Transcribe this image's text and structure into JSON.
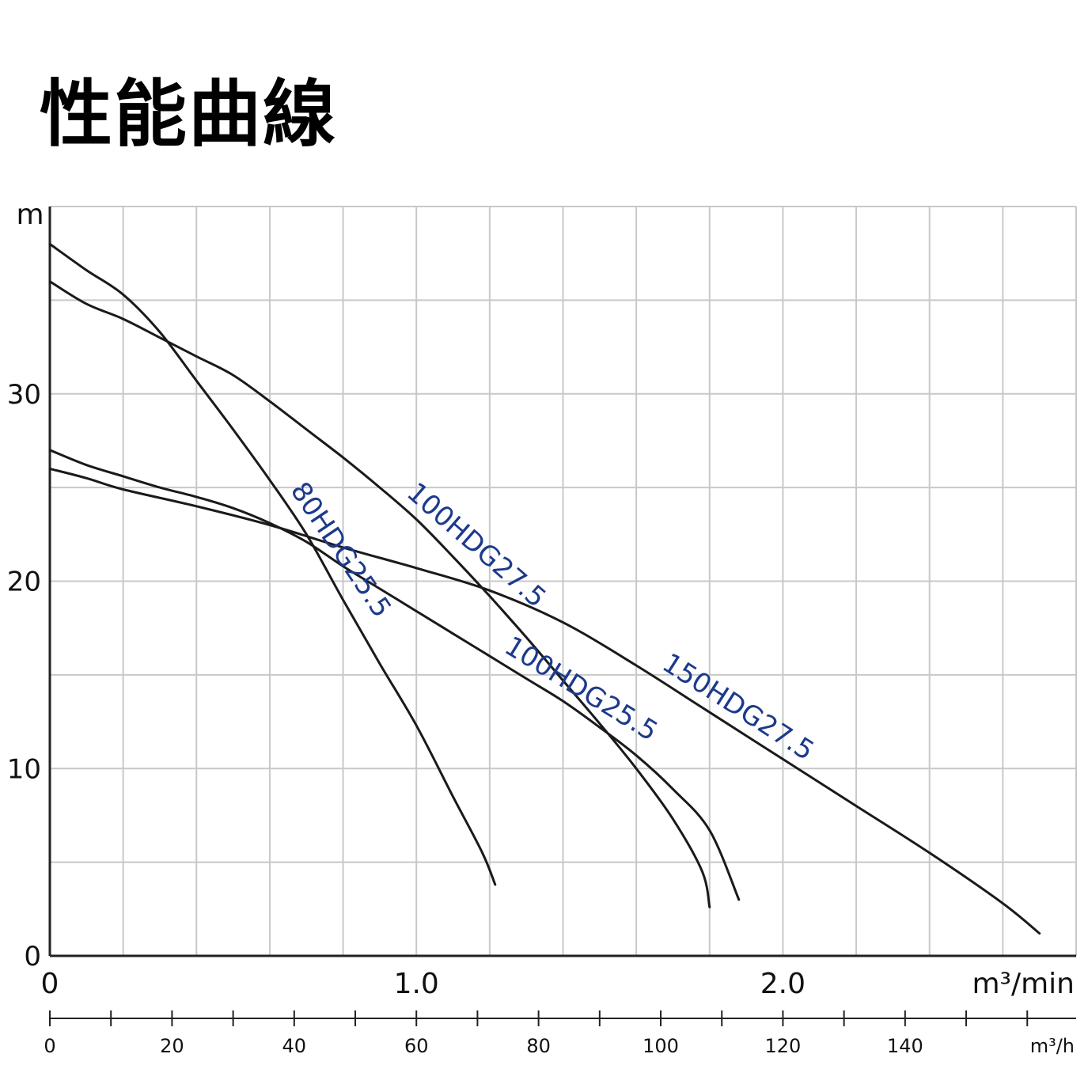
{
  "title": "性能曲線",
  "chart_data": {
    "type": "line",
    "title": "性能曲線",
    "ylabel": "m",
    "xlabel": "m³/min",
    "xlabel_secondary": "m³/h",
    "xlim": [
      0,
      2.8
    ],
    "ylim": [
      0,
      40
    ],
    "yticks": [
      0,
      10,
      20,
      30
    ],
    "xticks_major": [
      0,
      1.0,
      2.0
    ],
    "xticks_major_labels": [
      "0",
      "1.0",
      "2.0"
    ],
    "xticks_secondary": [
      0,
      20,
      40,
      60,
      80,
      100,
      120,
      140
    ],
    "xticks_secondary_labels": [
      "0",
      "20",
      "40",
      "60",
      "80",
      "100",
      "120",
      "140"
    ],
    "grid": true,
    "series": [
      {
        "name": "80HDG25.5",
        "color": "#1a1a1a",
        "label_color": "#1c3a8c",
        "points": [
          [
            0,
            38.0
          ],
          [
            0.1,
            36.6
          ],
          [
            0.2,
            35.3
          ],
          [
            0.3,
            33.3
          ],
          [
            0.4,
            30.7
          ],
          [
            0.5,
            28.1
          ],
          [
            0.6,
            25.4
          ],
          [
            0.7,
            22.5
          ],
          [
            0.8,
            19.0
          ],
          [
            0.9,
            15.6
          ],
          [
            1.0,
            12.3
          ],
          [
            1.1,
            8.5
          ],
          [
            1.18,
            5.5
          ],
          [
            1.215,
            3.8
          ]
        ]
      },
      {
        "name": "100HDG27.5",
        "color": "#1a1a1a",
        "label_color": "#1c3a8c",
        "points": [
          [
            0,
            36.0
          ],
          [
            0.1,
            34.8
          ],
          [
            0.2,
            34.0
          ],
          [
            0.3,
            33.0
          ],
          [
            0.4,
            32.0
          ],
          [
            0.5,
            31.0
          ],
          [
            0.6,
            29.6
          ],
          [
            0.7,
            28.1
          ],
          [
            0.8,
            26.6
          ],
          [
            0.9,
            25.0
          ],
          [
            1.0,
            23.3
          ],
          [
            1.1,
            21.3
          ],
          [
            1.2,
            19.2
          ],
          [
            1.3,
            17.0
          ],
          [
            1.4,
            14.7
          ],
          [
            1.5,
            12.4
          ],
          [
            1.6,
            10.0
          ],
          [
            1.7,
            7.3
          ],
          [
            1.78,
            4.5
          ],
          [
            1.8,
            2.6
          ]
        ]
      },
      {
        "name": "100HDG25.5",
        "color": "#1a1a1a",
        "label_color": "#1c3a8c",
        "points": [
          [
            0,
            27.0
          ],
          [
            0.1,
            26.2
          ],
          [
            0.2,
            25.6
          ],
          [
            0.3,
            25.0
          ],
          [
            0.4,
            24.5
          ],
          [
            0.5,
            23.9
          ],
          [
            0.6,
            23.1
          ],
          [
            0.7,
            22.1
          ],
          [
            0.8,
            20.8
          ],
          [
            0.9,
            19.6
          ],
          [
            1.0,
            18.4
          ],
          [
            1.1,
            17.2
          ],
          [
            1.2,
            16.0
          ],
          [
            1.3,
            14.8
          ],
          [
            1.4,
            13.6
          ],
          [
            1.5,
            12.2
          ],
          [
            1.6,
            10.7
          ],
          [
            1.7,
            8.9
          ],
          [
            1.8,
            6.7
          ],
          [
            1.88,
            3.0
          ]
        ]
      },
      {
        "name": "150HDG27.5",
        "color": "#1a1a1a",
        "label_color": "#1c3a8c",
        "points": [
          [
            0,
            26.0
          ],
          [
            0.1,
            25.5
          ],
          [
            0.2,
            24.9
          ],
          [
            0.4,
            24.0
          ],
          [
            0.6,
            23.0
          ],
          [
            0.8,
            21.8
          ],
          [
            1.0,
            20.7
          ],
          [
            1.2,
            19.5
          ],
          [
            1.4,
            17.8
          ],
          [
            1.6,
            15.5
          ],
          [
            1.8,
            13.0
          ],
          [
            2.0,
            10.5
          ],
          [
            2.2,
            8.0
          ],
          [
            2.4,
            5.5
          ],
          [
            2.6,
            2.8
          ],
          [
            2.7,
            1.2
          ]
        ]
      }
    ]
  }
}
